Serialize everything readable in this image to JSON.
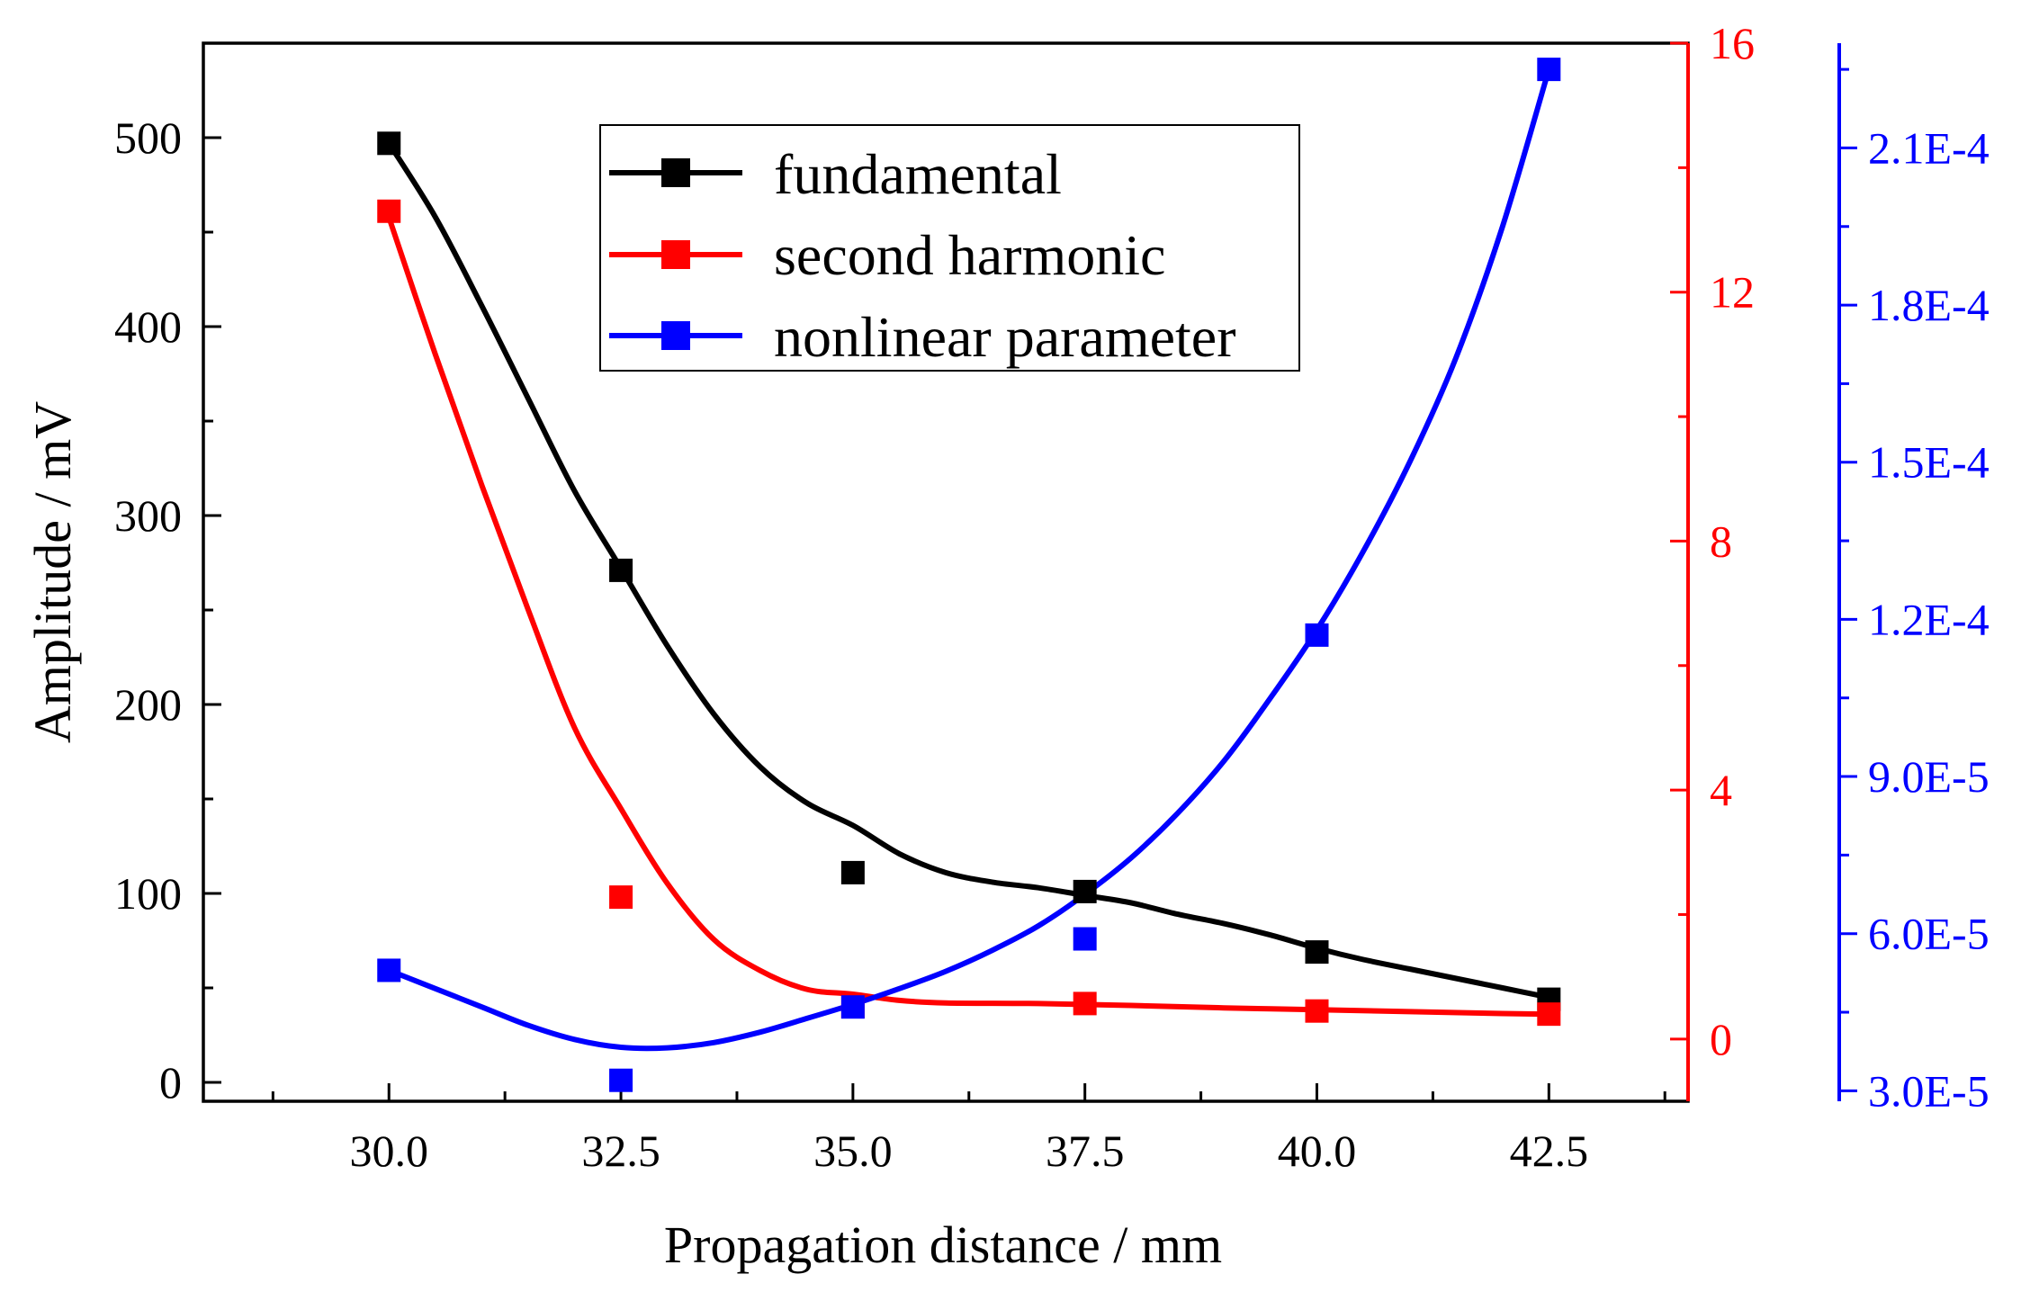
{
  "chart_data": {
    "type": "scatter",
    "title": "",
    "xlabel": "Propagation distance / mm",
    "ylabel": "Amplitude / mV",
    "xlim": [
      28.0,
      44.0
    ],
    "x_ticks": [
      "30.0",
      "32.5",
      "35.0",
      "37.5",
      "40.0",
      "42.5"
    ],
    "x_tick_values": [
      30.0,
      32.5,
      35.0,
      37.5,
      40.0,
      42.5
    ],
    "axes": {
      "left": {
        "ylim": [
          -10,
          550
        ],
        "ticks": [
          "0",
          "100",
          "200",
          "300",
          "400",
          "500"
        ],
        "tick_values": [
          0,
          100,
          200,
          300,
          400,
          500
        ],
        "color": "#000000"
      },
      "right": {
        "ylim": [
          -1.0,
          16.0
        ],
        "ticks": [
          "0",
          "4",
          "8",
          "12",
          "16"
        ],
        "tick_values": [
          0,
          4,
          8,
          12,
          16
        ],
        "color": "#ff0000"
      },
      "far_right": {
        "ylim": [
          2.8e-05,
          0.00023
        ],
        "ticks": [
          "3.0E-5",
          "6.0E-5",
          "9.0E-5",
          "1.2E-4",
          "1.5E-4",
          "1.8E-4",
          "2.1E-4"
        ],
        "tick_values": [
          3e-05,
          6e-05,
          9e-05,
          0.00012,
          0.00015,
          0.00018,
          0.00021
        ],
        "color": "#0000ff"
      }
    },
    "x": [
      30.0,
      32.5,
      35.0,
      37.5,
      40.0,
      42.5
    ],
    "series": [
      {
        "name": "fundamental",
        "axis": "left",
        "color": "#000000",
        "values": [
          497,
          271,
          111,
          101,
          69,
          44
        ],
        "fit": [
          [
            30.0,
            497
          ],
          [
            30.5,
            458
          ],
          [
            31.0,
            411
          ],
          [
            31.5,
            362
          ],
          [
            32.0,
            313
          ],
          [
            32.5,
            272
          ],
          [
            33.0,
            231
          ],
          [
            33.5,
            195
          ],
          [
            34.0,
            167
          ],
          [
            34.5,
            148
          ],
          [
            35.0,
            136
          ],
          [
            35.5,
            121
          ],
          [
            36.0,
            111
          ],
          [
            36.5,
            106
          ],
          [
            37.0,
            103
          ],
          [
            37.5,
            99
          ],
          [
            38.0,
            95
          ],
          [
            38.5,
            89
          ],
          [
            39.0,
            84
          ],
          [
            39.5,
            78
          ],
          [
            40.0,
            71
          ],
          [
            40.5,
            65
          ],
          [
            41.0,
            60
          ],
          [
            41.5,
            55
          ],
          [
            42.0,
            50
          ],
          [
            42.5,
            45
          ]
        ]
      },
      {
        "name": "second harmonic",
        "axis": "right",
        "color": "#ff0000",
        "values": [
          13.3,
          2.28,
          0.52,
          0.57,
          0.45,
          0.4
        ],
        "fit": [
          [
            30.0,
            13.2
          ],
          [
            30.5,
            11.0
          ],
          [
            31.0,
            8.9
          ],
          [
            31.5,
            6.9
          ],
          [
            32.0,
            5.0
          ],
          [
            32.5,
            3.7
          ],
          [
            33.0,
            2.5
          ],
          [
            33.5,
            1.6
          ],
          [
            34.0,
            1.1
          ],
          [
            34.5,
            0.8
          ],
          [
            35.0,
            0.72
          ],
          [
            35.5,
            0.62
          ],
          [
            36.0,
            0.58
          ],
          [
            37.0,
            0.57
          ],
          [
            38.0,
            0.54
          ],
          [
            39.0,
            0.5
          ],
          [
            40.0,
            0.47
          ],
          [
            41.0,
            0.44
          ],
          [
            42.0,
            0.41
          ],
          [
            42.5,
            0.4
          ]
        ]
      },
      {
        "name": "nonlinear parameter",
        "axis": "far_right",
        "color": "#0000ff",
        "values": [
          5.3e-05,
          3.2e-05,
          4.6e-05,
          5.9e-05,
          0.000117,
          0.000225
        ],
        "fit": [
          [
            30.0,
            5.3e-05
          ],
          [
            30.5,
            4.95e-05
          ],
          [
            31.0,
            4.6e-05
          ],
          [
            31.5,
            4.25e-05
          ],
          [
            32.0,
            3.98e-05
          ],
          [
            32.5,
            3.83e-05
          ],
          [
            33.0,
            3.82e-05
          ],
          [
            33.5,
            3.92e-05
          ],
          [
            34.0,
            4.12e-05
          ],
          [
            34.5,
            4.38e-05
          ],
          [
            35.0,
            4.65e-05
          ],
          [
            35.5,
            4.95e-05
          ],
          [
            36.0,
            5.28e-05
          ],
          [
            36.5,
            5.68e-05
          ],
          [
            37.0,
            6.15e-05
          ],
          [
            37.5,
            6.75e-05
          ],
          [
            38.0,
            7.45e-05
          ],
          [
            38.5,
            8.3e-05
          ],
          [
            39.0,
            9.3e-05
          ],
          [
            39.5,
            0.000105
          ],
          [
            40.0,
            0.000118
          ],
          [
            40.5,
            0.000133
          ],
          [
            41.0,
            0.00015
          ],
          [
            41.5,
            0.00017
          ],
          [
            42.0,
            0.000195
          ],
          [
            42.5,
            0.000225
          ]
        ]
      }
    ],
    "legend": {
      "position": "top-center",
      "entries": [
        "fundamental",
        "second harmonic",
        "nonlinear parameter"
      ]
    }
  }
}
